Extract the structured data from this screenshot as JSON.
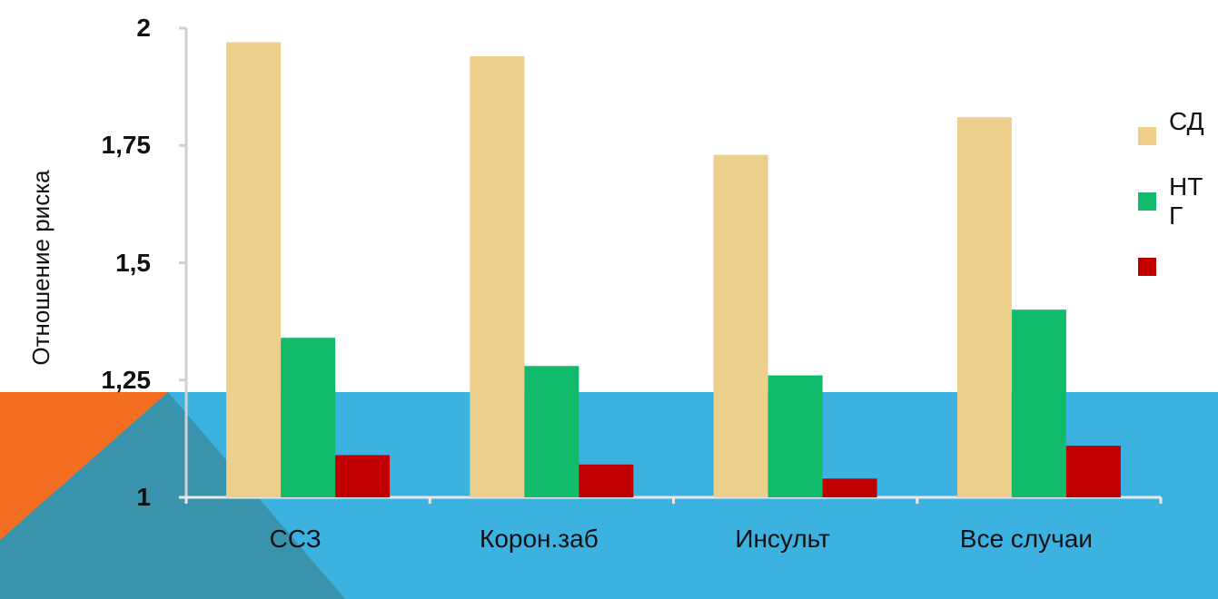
{
  "chart_data": {
    "type": "bar",
    "y_label": "Отношение риска",
    "categories": [
      "ССЗ",
      "Корон.заб",
      "Инсульт",
      "Все случаи"
    ],
    "series": [
      {
        "name": "СД",
        "color": "#ebcf8b",
        "values": [
          1.97,
          1.94,
          1.73,
          1.81
        ]
      },
      {
        "name": "НТГ",
        "color": "#12bb6c",
        "values": [
          1.34,
          1.28,
          1.26,
          1.4
        ]
      },
      {
        "color": "#c00000",
        "values": [
          1.09,
          1.07,
          1.04,
          1.11
        ]
      }
    ],
    "ylim": [
      1,
      2
    ],
    "yticks": [
      1,
      {
        "value": 1.25,
        "label": "1,25"
      },
      {
        "value": 1.5,
        "label": "1,5"
      },
      {
        "value": 1.75,
        "label": "1,75"
      },
      2
    ]
  }
}
